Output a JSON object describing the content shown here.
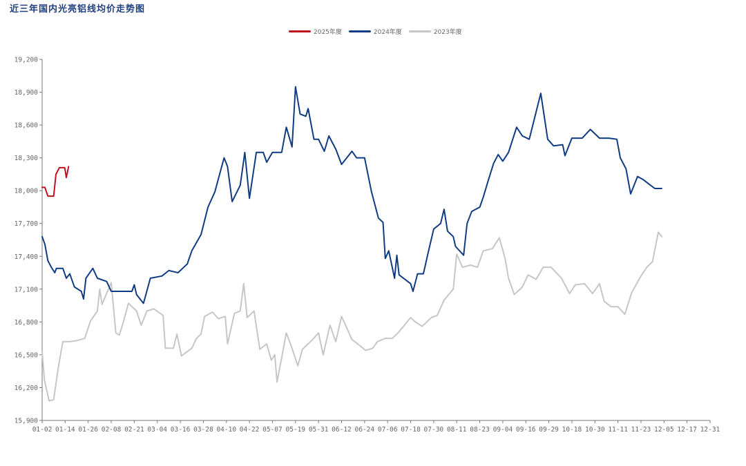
{
  "chart_data": {
    "type": "line",
    "title": "近三年国内光亮铝线均价走势图",
    "xlabel": "",
    "ylabel": "",
    "ylim": [
      15900,
      19200
    ],
    "yticks": [
      "15,900",
      "16,200",
      "16,500",
      "16,800",
      "17,100",
      "17,400",
      "17,700",
      "18,000",
      "18,300",
      "18,600",
      "18,900",
      "19,200"
    ],
    "xticks": [
      "01-02",
      "01-14",
      "01-26",
      "02-08",
      "02-21",
      "03-04",
      "03-16",
      "03-28",
      "04-10",
      "04-22",
      "05-07",
      "05-19",
      "05-31",
      "06-12",
      "06-24",
      "07-06",
      "07-18",
      "07-30",
      "08-11",
      "08-23",
      "09-04",
      "09-16",
      "09-29",
      "10-18",
      "10-30",
      "11-11",
      "11-23",
      "12-05",
      "12-17",
      "12-31"
    ],
    "series": [
      {
        "name": "2025年度",
        "color": "#c0111f",
        "points": [
          [
            0,
            18030
          ],
          [
            0.12,
            18030
          ],
          [
            0.25,
            17950
          ],
          [
            0.5,
            17950
          ],
          [
            0.6,
            18150
          ],
          [
            0.75,
            18210
          ],
          [
            0.98,
            18210
          ],
          [
            1.05,
            18120
          ],
          [
            1.15,
            18220
          ]
        ]
      },
      {
        "name": "2024年度",
        "color": "#0f3b82",
        "points": [
          [
            0,
            17580
          ],
          [
            0.12,
            17510
          ],
          [
            0.25,
            17360
          ],
          [
            0.4,
            17300
          ],
          [
            0.55,
            17250
          ],
          [
            0.62,
            17290
          ],
          [
            0.9,
            17290
          ],
          [
            1.05,
            17200
          ],
          [
            1.2,
            17240
          ],
          [
            1.4,
            17120
          ],
          [
            1.7,
            17080
          ],
          [
            1.8,
            17010
          ],
          [
            1.9,
            17200
          ],
          [
            2.2,
            17290
          ],
          [
            2.4,
            17200
          ],
          [
            2.8,
            17170
          ],
          [
            3.0,
            17080
          ],
          [
            3.9,
            17080
          ],
          [
            4.0,
            17140
          ],
          [
            4.1,
            17050
          ],
          [
            4.4,
            16970
          ],
          [
            4.7,
            17200
          ],
          [
            5.2,
            17220
          ],
          [
            5.5,
            17270
          ],
          [
            5.9,
            17250
          ],
          [
            6.1,
            17290
          ],
          [
            6.3,
            17330
          ],
          [
            6.5,
            17450
          ],
          [
            6.9,
            17600
          ],
          [
            7.2,
            17850
          ],
          [
            7.5,
            17990
          ],
          [
            7.9,
            18300
          ],
          [
            8.05,
            18220
          ],
          [
            8.25,
            17900
          ],
          [
            8.6,
            18050
          ],
          [
            8.8,
            18350
          ],
          [
            9.0,
            17930
          ],
          [
            9.3,
            18350
          ],
          [
            9.6,
            18350
          ],
          [
            9.75,
            18260
          ],
          [
            10.0,
            18350
          ],
          [
            10.4,
            18350
          ],
          [
            10.6,
            18580
          ],
          [
            10.85,
            18400
          ],
          [
            11.0,
            18950
          ],
          [
            11.2,
            18700
          ],
          [
            11.45,
            18680
          ],
          [
            11.55,
            18750
          ],
          [
            11.8,
            18470
          ],
          [
            12.0,
            18470
          ],
          [
            12.25,
            18360
          ],
          [
            12.45,
            18500
          ],
          [
            12.75,
            18380
          ],
          [
            13.0,
            18240
          ],
          [
            13.45,
            18360
          ],
          [
            13.65,
            18300
          ],
          [
            14.0,
            18300
          ],
          [
            14.3,
            17990
          ],
          [
            14.6,
            17750
          ],
          [
            14.8,
            17710
          ],
          [
            14.9,
            17380
          ],
          [
            15.05,
            17450
          ],
          [
            15.3,
            17200
          ],
          [
            15.4,
            17410
          ],
          [
            15.5,
            17230
          ],
          [
            16.0,
            17150
          ],
          [
            16.1,
            17080
          ],
          [
            16.3,
            17240
          ],
          [
            16.55,
            17240
          ],
          [
            16.8,
            17470
          ],
          [
            17.0,
            17650
          ],
          [
            17.3,
            17700
          ],
          [
            17.45,
            17830
          ],
          [
            17.6,
            17630
          ],
          [
            17.85,
            17580
          ],
          [
            17.95,
            17490
          ],
          [
            18.3,
            17410
          ],
          [
            18.45,
            17700
          ],
          [
            18.65,
            17810
          ],
          [
            19.0,
            17850
          ],
          [
            19.15,
            17940
          ],
          [
            19.35,
            18080
          ],
          [
            19.6,
            18250
          ],
          [
            19.8,
            18330
          ],
          [
            20.0,
            18270
          ],
          [
            20.25,
            18350
          ],
          [
            20.6,
            18580
          ],
          [
            20.85,
            18500
          ],
          [
            21.15,
            18470
          ],
          [
            21.65,
            18890
          ],
          [
            21.95,
            18470
          ],
          [
            22.2,
            18410
          ],
          [
            22.6,
            18420
          ],
          [
            22.7,
            18320
          ],
          [
            23.0,
            18480
          ],
          [
            23.45,
            18480
          ],
          [
            23.8,
            18560
          ],
          [
            24.2,
            18480
          ],
          [
            24.6,
            18480
          ],
          [
            24.95,
            18470
          ],
          [
            25.1,
            18300
          ],
          [
            25.35,
            18200
          ],
          [
            25.55,
            17970
          ],
          [
            25.85,
            18130
          ],
          [
            26.1,
            18100
          ],
          [
            26.35,
            18060
          ],
          [
            26.6,
            18020
          ],
          [
            26.9,
            18020
          ]
        ]
      },
      {
        "name": "2023年度",
        "color": "#c6c6c6",
        "points": [
          [
            0,
            16530
          ],
          [
            0.1,
            16270
          ],
          [
            0.3,
            16080
          ],
          [
            0.5,
            16090
          ],
          [
            0.7,
            16380
          ],
          [
            0.9,
            16620
          ],
          [
            1.2,
            16620
          ],
          [
            1.5,
            16630
          ],
          [
            1.85,
            16650
          ],
          [
            2.1,
            16810
          ],
          [
            2.4,
            16900
          ],
          [
            2.5,
            17100
          ],
          [
            2.6,
            16960
          ],
          [
            3.0,
            17160
          ],
          [
            3.2,
            16700
          ],
          [
            3.35,
            16680
          ],
          [
            3.5,
            16780
          ],
          [
            3.75,
            16970
          ],
          [
            4.1,
            16900
          ],
          [
            4.3,
            16770
          ],
          [
            4.55,
            16900
          ],
          [
            4.85,
            16920
          ],
          [
            5.25,
            16860
          ],
          [
            5.35,
            16560
          ],
          [
            5.7,
            16560
          ],
          [
            5.85,
            16690
          ],
          [
            6.05,
            16490
          ],
          [
            6.5,
            16560
          ],
          [
            6.7,
            16650
          ],
          [
            6.9,
            16690
          ],
          [
            7.05,
            16850
          ],
          [
            7.4,
            16890
          ],
          [
            7.65,
            16830
          ],
          [
            7.95,
            16850
          ],
          [
            8.05,
            16600
          ],
          [
            8.35,
            16880
          ],
          [
            8.6,
            16900
          ],
          [
            8.75,
            17150
          ],
          [
            8.9,
            16840
          ],
          [
            9.2,
            16900
          ],
          [
            9.45,
            16550
          ],
          [
            9.75,
            16600
          ],
          [
            9.95,
            16450
          ],
          [
            10.1,
            16500
          ],
          [
            10.2,
            16250
          ],
          [
            10.6,
            16700
          ],
          [
            10.85,
            16560
          ],
          [
            11.1,
            16400
          ],
          [
            11.3,
            16550
          ],
          [
            11.55,
            16600
          ],
          [
            11.75,
            16640
          ],
          [
            12.0,
            16700
          ],
          [
            12.2,
            16500
          ],
          [
            12.5,
            16770
          ],
          [
            12.75,
            16620
          ],
          [
            13.0,
            16850
          ],
          [
            13.45,
            16640
          ],
          [
            13.7,
            16600
          ],
          [
            14.05,
            16540
          ],
          [
            14.35,
            16560
          ],
          [
            14.55,
            16620
          ],
          [
            14.9,
            16650
          ],
          [
            15.2,
            16650
          ],
          [
            15.45,
            16700
          ],
          [
            16.0,
            16840
          ],
          [
            16.2,
            16800
          ],
          [
            16.5,
            16760
          ],
          [
            16.9,
            16840
          ],
          [
            17.15,
            16860
          ],
          [
            17.45,
            17000
          ],
          [
            17.85,
            17100
          ],
          [
            18.0,
            17420
          ],
          [
            18.25,
            17300
          ],
          [
            18.6,
            17320
          ],
          [
            18.9,
            17300
          ],
          [
            19.15,
            17450
          ],
          [
            19.55,
            17470
          ],
          [
            19.85,
            17570
          ],
          [
            20.1,
            17380
          ],
          [
            20.25,
            17200
          ],
          [
            20.5,
            17050
          ],
          [
            20.85,
            17120
          ],
          [
            21.1,
            17230
          ],
          [
            21.45,
            17190
          ],
          [
            21.75,
            17300
          ],
          [
            22.1,
            17300
          ],
          [
            22.55,
            17200
          ],
          [
            22.9,
            17060
          ],
          [
            23.15,
            17140
          ],
          [
            23.55,
            17150
          ],
          [
            23.9,
            17060
          ],
          [
            24.2,
            17150
          ],
          [
            24.4,
            16990
          ],
          [
            24.7,
            16940
          ],
          [
            25.0,
            16940
          ],
          [
            25.3,
            16870
          ],
          [
            25.6,
            17070
          ],
          [
            26.0,
            17220
          ],
          [
            26.25,
            17300
          ],
          [
            26.5,
            17350
          ],
          [
            26.75,
            17620
          ],
          [
            26.9,
            17580
          ]
        ]
      }
    ],
    "legend": "top-center"
  }
}
